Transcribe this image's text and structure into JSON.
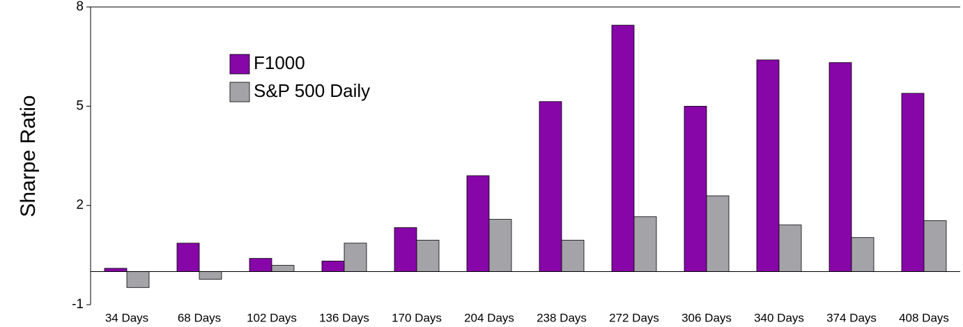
{
  "chart_data": {
    "type": "bar",
    "ylabel": "Sharpe Ratio",
    "categories": [
      "34 Days",
      "68 Days",
      "102 Days",
      "136 Days",
      "170 Days",
      "204 Days",
      "238 Days",
      "272 Days",
      "306 Days",
      "340 Days",
      "374 Days",
      "408 Days"
    ],
    "series": [
      {
        "name": "F1000",
        "color": "#8606a8",
        "values": [
          0.1,
          0.86,
          0.4,
          0.32,
          1.33,
          2.9,
          5.14,
          7.45,
          5.0,
          6.4,
          6.32,
          5.39
        ]
      },
      {
        "name": "S&P 500 Daily",
        "color": "#a4a3a8",
        "values": [
          -0.48,
          -0.23,
          0.19,
          0.86,
          0.95,
          1.58,
          0.95,
          1.66,
          2.29,
          1.41,
          1.03,
          1.54
        ]
      }
    ],
    "ylim": [
      -1,
      8
    ],
    "yticks": [
      -1,
      2,
      5,
      8
    ],
    "grid": false,
    "legend": "upper left"
  }
}
